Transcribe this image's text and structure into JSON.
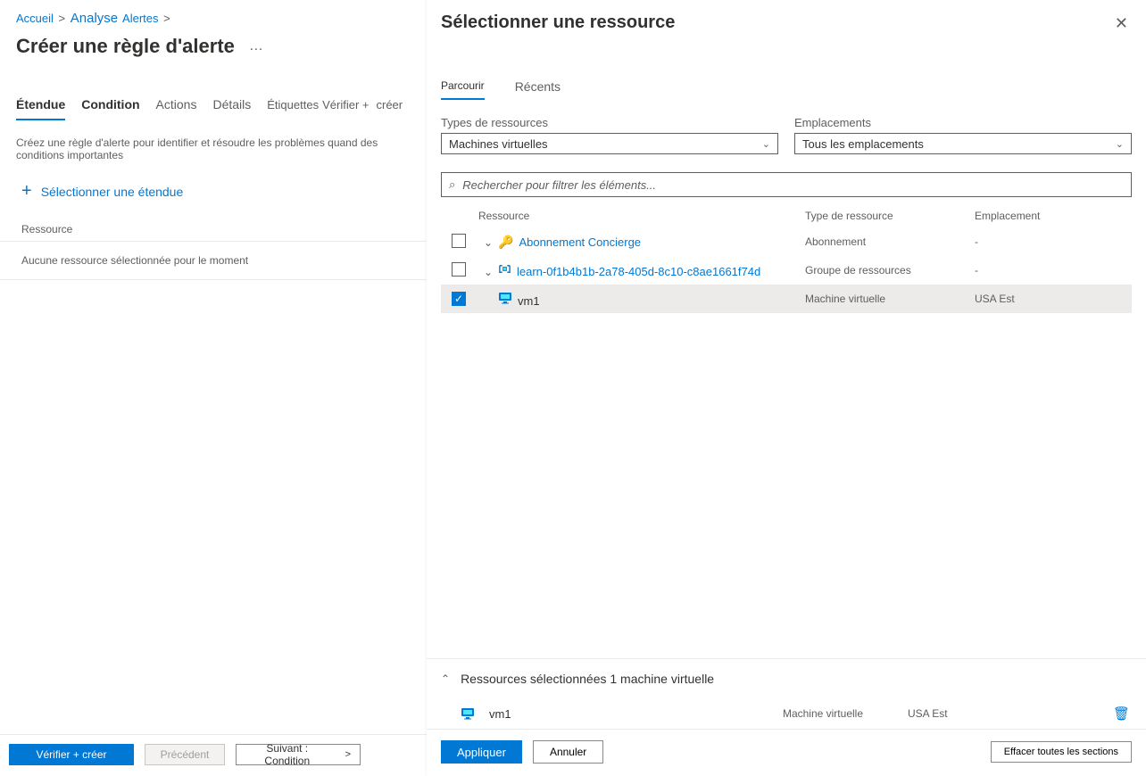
{
  "breadcrumb": {
    "home": "Accueil",
    "analyse": "Analyse",
    "alerts": "Alertes"
  },
  "page_title": "Créer une règle d'alerte",
  "left_tabs": {
    "etendue": "Étendue",
    "condition": "Condition",
    "actions": "Actions",
    "details": "Détails",
    "etiquettes": "Étiquettes",
    "verifier": "Vérifier +",
    "creer": "créer"
  },
  "left_subtext": "Créez une règle d'alerte pour identifier et résoudre les problèmes quand des conditions importantes",
  "select_scope": "Sélectionner une étendue",
  "resource_header": "Ressource",
  "no_resource": "Aucune ressource sélectionnée pour le moment",
  "left_footer": {
    "verify": "Vérifier +   créer",
    "previous": "Précédent",
    "next": "Suivant :  Condition"
  },
  "panel": {
    "title": "Sélectionner une ressource",
    "tabs": {
      "browse": "Parcourir",
      "recent": "Récents"
    },
    "filters": {
      "type_label": "Types de ressources",
      "type_value": "Machines virtuelles",
      "loc_label": "Emplacements",
      "loc_value": "Tous les emplacements"
    },
    "search_placeholder": "Rechercher pour filtrer les éléments...",
    "columns": {
      "resource": "Ressource",
      "type": "Type de ressource",
      "location": "Emplacement"
    },
    "rows": [
      {
        "level": 0,
        "checked": false,
        "expandable": true,
        "icon": "key",
        "label": "Abonnement Concierge",
        "link": true,
        "type": "Abonnement",
        "location": "-"
      },
      {
        "level": 1,
        "checked": false,
        "expandable": true,
        "icon": "rg",
        "label": "learn-0f1b4b1b-2a78-405d-8c10-c8ae1661f74d",
        "link": true,
        "type": "Groupe de ressources",
        "location": "-"
      },
      {
        "level": 2,
        "checked": true,
        "expandable": false,
        "icon": "vm",
        "label": "vm1",
        "link": false,
        "type": "Machine virtuelle",
        "location": "USA Est"
      }
    ],
    "selected_header": "Ressources sélectionnées 1 machine virtuelle",
    "selected": {
      "name": "vm1",
      "type": "Machine virtuelle",
      "location": "USA Est"
    },
    "footer": {
      "apply": "Appliquer",
      "cancel": "Annuler",
      "clear": "Effacer toutes les sections"
    }
  }
}
